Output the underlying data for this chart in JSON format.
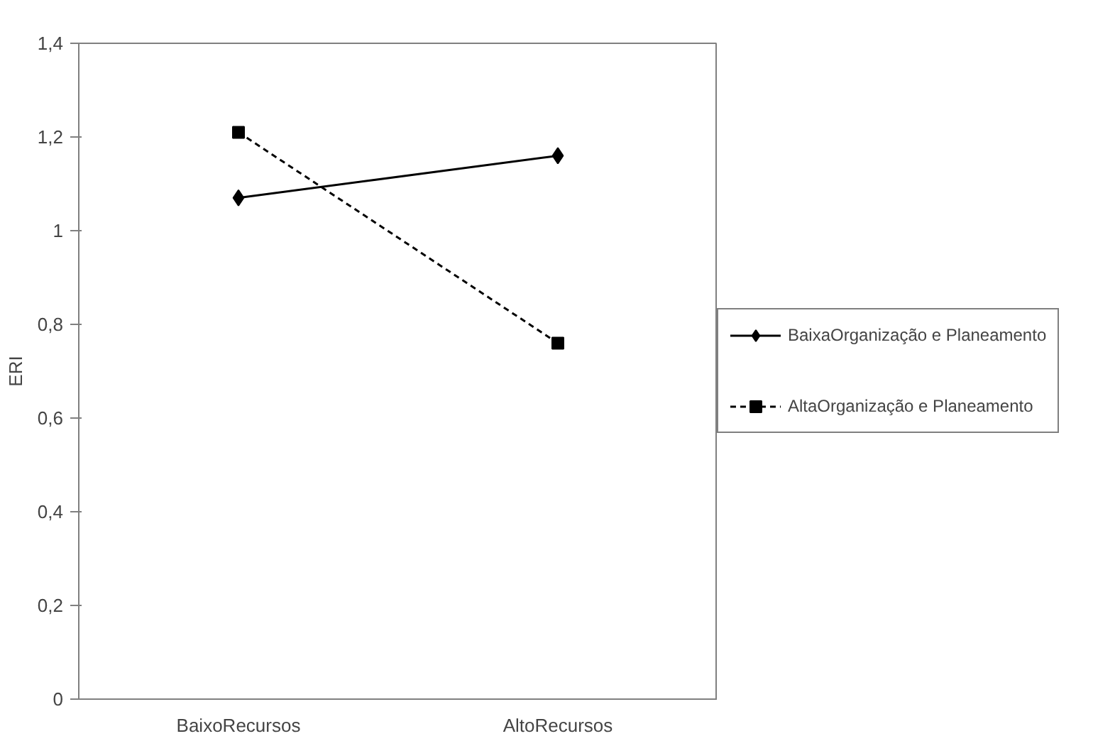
{
  "chart_data": {
    "type": "line",
    "ylabel": "ERI",
    "categories": [
      "BaixoRecursos",
      "AltoRecursos"
    ],
    "series": [
      {
        "name": "BaixaOrganização e Planeamento",
        "color": "#000000",
        "values": [
          1.07,
          1.16
        ],
        "marker": "diamond",
        "line_style": "solid"
      },
      {
        "name": "AltaOrganização e Planeamento",
        "color": "#000000",
        "values": [
          1.21,
          0.76
        ],
        "marker": "square",
        "line_style": "dashed"
      }
    ],
    "ylim": [
      0,
      1.4
    ],
    "yticks": [
      {
        "value": 0,
        "label": "0"
      },
      {
        "value": 0.2,
        "label": "0,2"
      },
      {
        "value": 0.4,
        "label": "0,4"
      },
      {
        "value": 0.6,
        "label": "0,6"
      },
      {
        "value": 0.8,
        "label": "0,8"
      },
      {
        "value": 1,
        "label": "1"
      },
      {
        "value": 1.2,
        "label": "1,2"
      },
      {
        "value": 1.4,
        "label": "1,4"
      }
    ],
    "legend": "right"
  }
}
